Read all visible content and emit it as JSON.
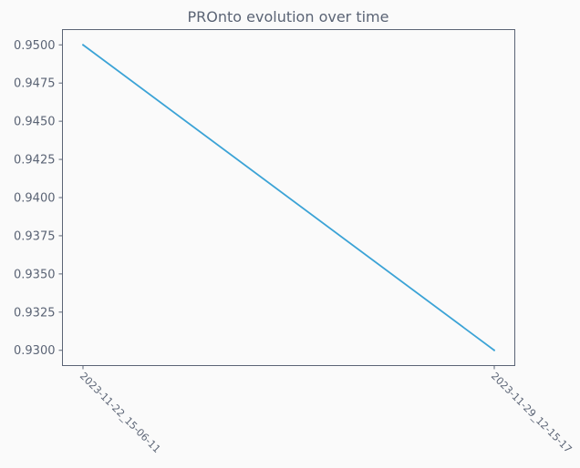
{
  "chart_data": {
    "type": "line",
    "title": "PROnto evolution over time",
    "xlabel": "",
    "ylabel": "",
    "x": [
      "2023-11-22_15-06-11",
      "2023-11-29_12-15-17"
    ],
    "series": [
      {
        "values": [
          0.95,
          0.93
        ]
      }
    ],
    "ylim": [
      0.929,
      0.951
    ],
    "yticks": [
      "0.9300",
      "0.9325",
      "0.9350",
      "0.9375",
      "0.9400",
      "0.9425",
      "0.9450",
      "0.9475",
      "0.9500"
    ],
    "grid": false,
    "colors": {
      "line": "#3ba3d6",
      "axes": "#5b6475",
      "text": "#5b6475",
      "background": "#fafafa"
    }
  }
}
